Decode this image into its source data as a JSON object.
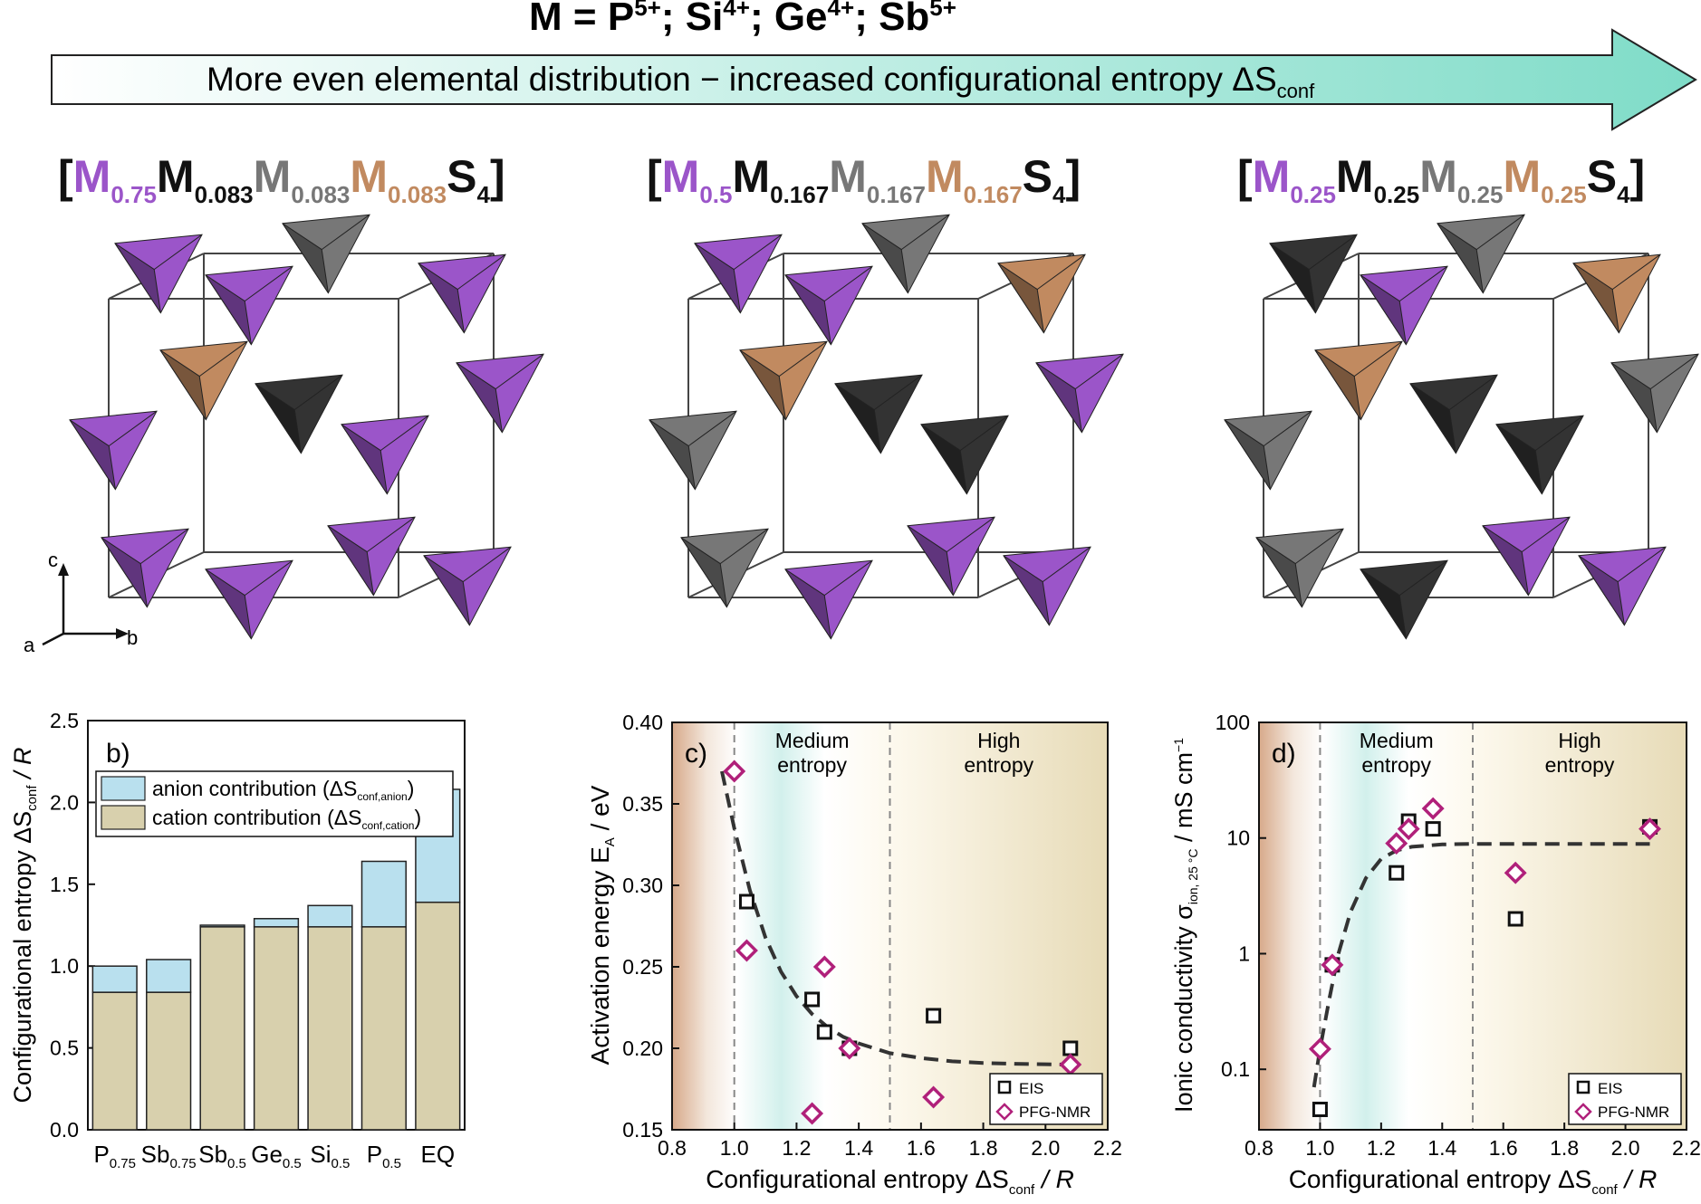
{
  "header": {
    "title_main": "M = P",
    "title_sup1": "5+",
    "title_sep1": "; Si",
    "title_sup2": "4+",
    "title_sep2": "; Ge",
    "title_sup3": "4+",
    "title_sep3": "; Sb",
    "title_sup4": "5+",
    "arrow_text": "More even elemental distribution − increased configurational entropy ΔS",
    "arrow_sub": "conf"
  },
  "colors": {
    "purple": "#9b55c9",
    "black_element": "#333333",
    "gray_element": "#777777",
    "tan_element": "#c18a60",
    "anion_fill": "#b9e0ee",
    "cation_fill": "#d8d0ad",
    "eis": "#111111",
    "pfg": "#b0207a"
  },
  "formulas": [
    {
      "bracket_open": "[",
      "m": "M",
      "s1": "0.75",
      "s2": "0.083",
      "s3": "0.083",
      "s4": "0.083",
      "s": "S",
      "s_sub": "4",
      "bracket_close": "]"
    },
    {
      "bracket_open": "[",
      "m": "M",
      "s1": "0.5",
      "s2": "0.167",
      "s3": "0.167",
      "s4": "0.167",
      "s": "S",
      "s_sub": "4",
      "bracket_close": "]"
    },
    {
      "bracket_open": "[",
      "m": "M",
      "s1": "0.25",
      "s2": "0.25",
      "s3": "0.25",
      "s4": "0.25",
      "s": "S",
      "s_sub": "4",
      "bracket_close": "]"
    }
  ],
  "axes_labels": {
    "a": "a",
    "b": "b",
    "c": "c"
  },
  "crystals": [
    [
      "purple",
      "gray",
      "purple",
      "purple",
      "tan",
      "purple",
      "purple",
      "black",
      "purple",
      "purple",
      "purple",
      "purple"
    ],
    [
      "purple",
      "gray",
      "tan",
      "purple",
      "tan",
      "purple",
      "gray",
      "black",
      "black",
      "gray",
      "purple",
      "purple"
    ],
    [
      "black",
      "gray",
      "tan",
      "purple",
      "tan",
      "gray",
      "gray",
      "black",
      "black",
      "gray",
      "purple",
      "purple"
    ]
  ],
  "chart_data": [
    {
      "type": "bar",
      "panel": "b)",
      "stacked": true,
      "categories": [
        {
          "base": "P",
          "sub": "0.75"
        },
        {
          "base": "Sb",
          "sub": "0.75"
        },
        {
          "base": "Sb",
          "sub": "0.5"
        },
        {
          "base": "Ge",
          "sub": "0.5"
        },
        {
          "base": "Si",
          "sub": "0.5"
        },
        {
          "base": "P",
          "sub": "0.5"
        },
        {
          "base": "EQ",
          "sub": ""
        }
      ],
      "series": [
        {
          "name": "cation contribution (ΔS",
          "sub": "conf,cation",
          "close": ")",
          "values": [
            0.84,
            0.84,
            1.24,
            1.24,
            1.24,
            1.24,
            1.39
          ]
        },
        {
          "name": "anion contribution (ΔS",
          "sub": "conf,anion",
          "close": ")",
          "values": [
            0.16,
            0.2,
            0.01,
            0.05,
            0.13,
            0.4,
            0.69
          ]
        }
      ],
      "ylabel": "Configurational entropy ΔS",
      "ylabel_sub": "conf",
      "ylabel_tail": " / R",
      "ylim": [
        0.0,
        2.5
      ],
      "yticks": [
        "0.0",
        "0.5",
        "1.0",
        "1.5",
        "2.0",
        "2.5"
      ]
    },
    {
      "type": "scatter",
      "panel": "c)",
      "xlabel": "Configurational entropy ΔS",
      "xlabel_sub": "conf",
      "xlabel_tail": " / R",
      "ylabel": "Activation energy E",
      "ylabel_sub": "A",
      "ylabel_tail": " / eV",
      "xlim": [
        0.8,
        2.2
      ],
      "ylim": [
        0.15,
        0.4
      ],
      "xticks": [
        "0.8",
        "1.0",
        "1.2",
        "1.4",
        "1.6",
        "1.8",
        "2.0",
        "2.2"
      ],
      "yticks": [
        "0.15",
        "0.20",
        "0.25",
        "0.30",
        "0.35",
        "0.40"
      ],
      "regions": {
        "medium": [
          "Medium",
          "entropy"
        ],
        "high": [
          "High",
          "entropy"
        ],
        "bounds": [
          1.0,
          1.5
        ]
      },
      "series": [
        {
          "name": "EIS",
          "marker": "square",
          "x": [
            1.04,
            1.25,
            1.29,
            1.37,
            1.64,
            2.08
          ],
          "y": [
            0.29,
            0.23,
            0.21,
            0.2,
            0.22,
            0.2
          ]
        },
        {
          "name": "PFG-NMR",
          "marker": "diamond",
          "x": [
            1.0,
            1.04,
            1.25,
            1.29,
            1.37,
            1.64,
            2.08
          ],
          "y": [
            0.37,
            0.26,
            0.16,
            0.25,
            0.2,
            0.17,
            0.19
          ]
        }
      ],
      "fit": {
        "x": [
          0.96,
          1.0,
          1.05,
          1.1,
          1.15,
          1.2,
          1.25,
          1.3,
          1.35,
          1.4,
          1.5,
          1.6,
          1.7,
          1.8,
          1.9,
          2.0,
          2.08
        ],
        "y": [
          0.37,
          0.335,
          0.297,
          0.268,
          0.247,
          0.232,
          0.221,
          0.213,
          0.207,
          0.203,
          0.197,
          0.194,
          0.192,
          0.191,
          0.1905,
          0.1902,
          0.19
        ]
      }
    },
    {
      "type": "scatter",
      "panel": "d)",
      "xlabel": "Configurational entropy ΔS",
      "xlabel_sub": "conf",
      "xlabel_tail": " / R",
      "ylabel": "Ionic conductivity σ",
      "ylabel_sub": "ion, 25 °C",
      "ylabel_tail": " / mS cm",
      "ylabel_sup": "−1",
      "yscale": "log",
      "xlim": [
        0.8,
        2.2
      ],
      "ylim": [
        0.03,
        100
      ],
      "xticks": [
        "0.8",
        "1.0",
        "1.2",
        "1.4",
        "1.6",
        "1.8",
        "2.0",
        "2.2"
      ],
      "yticks": [
        "0.1",
        "1",
        "10",
        "100"
      ],
      "regions": {
        "medium": [
          "Medium",
          "entropy"
        ],
        "high": [
          "High",
          "entropy"
        ],
        "bounds": [
          1.0,
          1.5
        ]
      },
      "series": [
        {
          "name": "EIS",
          "marker": "square",
          "x": [
            1.0,
            1.04,
            1.25,
            1.29,
            1.37,
            1.64,
            2.08
          ],
          "y": [
            0.045,
            0.8,
            5,
            14,
            12,
            2,
            12.5
          ]
        },
        {
          "name": "PFG-NMR",
          "marker": "diamond",
          "x": [
            1.0,
            1.04,
            1.25,
            1.29,
            1.37,
            1.64,
            2.08
          ],
          "y": [
            0.15,
            0.8,
            9,
            12,
            18,
            5,
            12
          ]
        }
      ],
      "fit": {
        "x": [
          0.98,
          1.0,
          1.03,
          1.06,
          1.1,
          1.15,
          1.2,
          1.25,
          1.3,
          1.4,
          1.5,
          1.7,
          1.9,
          2.08
        ],
        "y": [
          0.07,
          0.15,
          0.4,
          1.0,
          2.3,
          4.5,
          6.6,
          7.8,
          8.4,
          8.8,
          8.9,
          8.9,
          8.9,
          8.9
        ]
      }
    }
  ]
}
